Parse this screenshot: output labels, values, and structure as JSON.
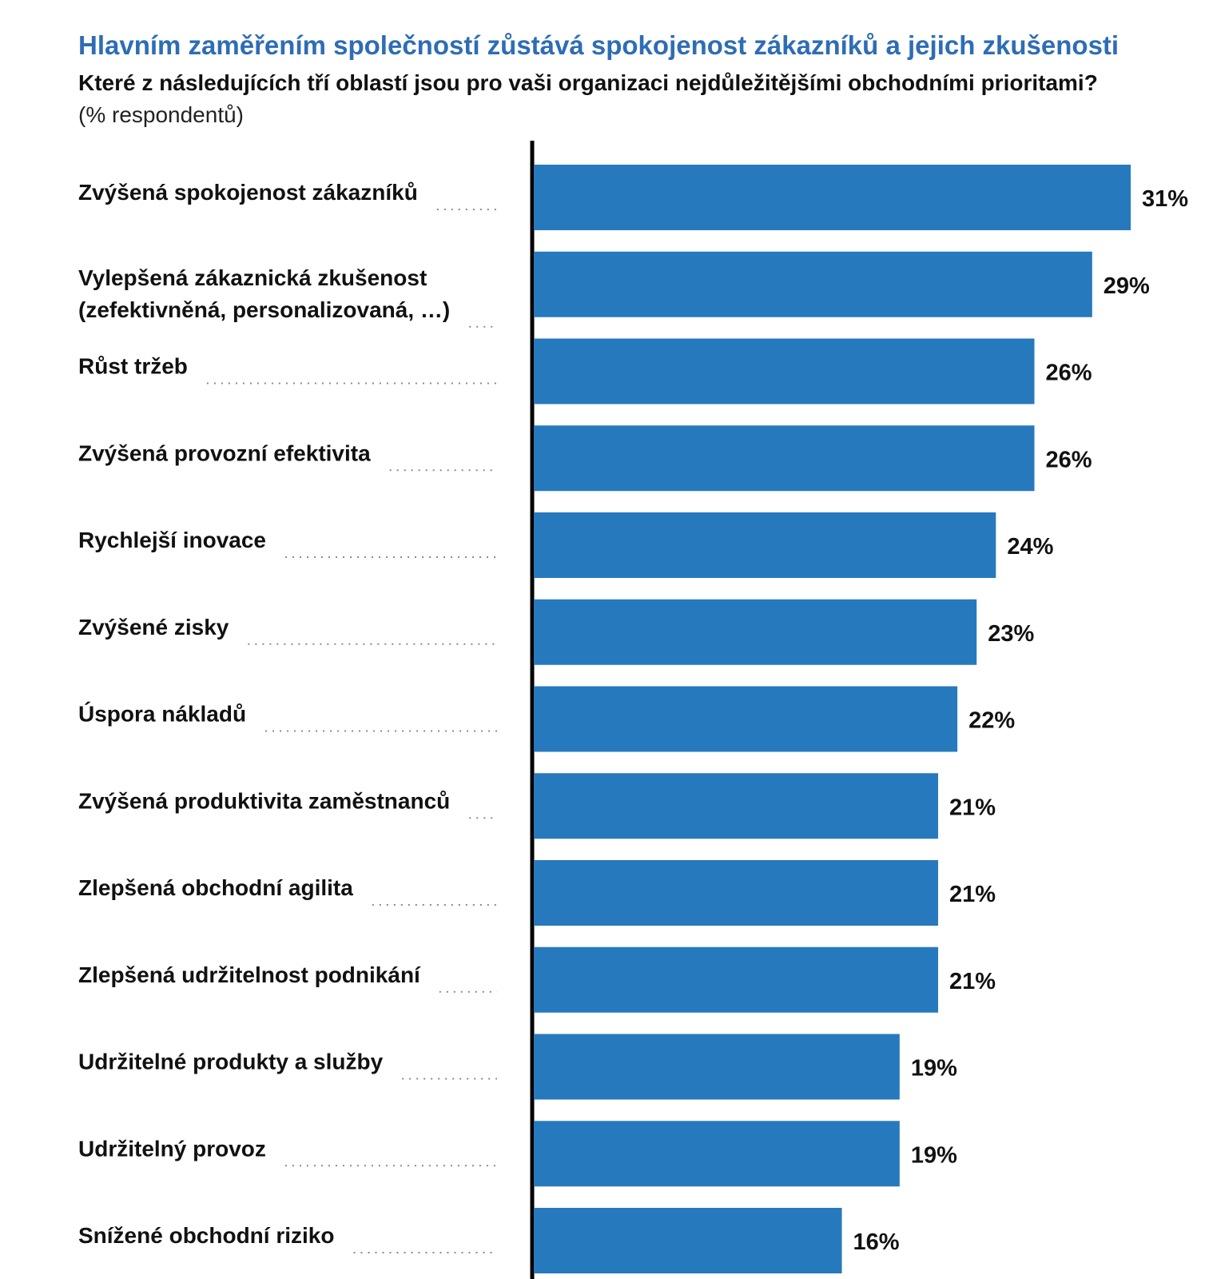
{
  "title": "Hlavním zaměřením společností zůstává spokojenost zákazníků a jejich zkušenosti",
  "subtitle": "Které z následujících tří oblastí jsou pro vaši organizaci nejdůležitějšími obchodními prioritami?",
  "note": "(% respondentů)",
  "colors": {
    "bar": "#2779bd",
    "axis": "#000000",
    "title": "#2e6db5"
  },
  "chart_data": {
    "type": "bar",
    "orientation": "horizontal",
    "title": "Hlavním zaměřením společností zůstává spokojenost zákazníků a jejich zkušenosti",
    "subtitle": "Které z následujících tří oblastí jsou pro vaši organizaci nejdůležitějšími obchodními prioritami?",
    "unit": "(% respondentů)",
    "categories": [
      [
        "Zvýšená spokojenost zákazníků"
      ],
      [
        "Vylepšená zákaznická zkušenost",
        "(zefektivněná, personalizovaná, …)"
      ],
      [
        "Růst tržeb"
      ],
      [
        "Zvýšená provozní efektivita"
      ],
      [
        "Rychlejší inovace"
      ],
      [
        "Zvýšené zisky"
      ],
      [
        "Úspora nákladů"
      ],
      [
        "Zvýšená produktivita zaměstnanců"
      ],
      [
        "Zlepšená obchodní agilita"
      ],
      [
        "Zlepšená udržitelnost podnikání"
      ],
      [
        "Udržitelné produkty a služby"
      ],
      [
        "Udržitelný provoz"
      ],
      [
        "Snížené obchodní riziko"
      ]
    ],
    "values": [
      31,
      29,
      26,
      26,
      24,
      23,
      22,
      21,
      21,
      21,
      19,
      19,
      16
    ],
    "labels": [
      "31%",
      "29%",
      "26%",
      "26%",
      "24%",
      "23%",
      "22%",
      "21%",
      "21%",
      "21%",
      "19%",
      "19%",
      "16%"
    ],
    "xlim": [
      0,
      31
    ],
    "grid": false,
    "legend": "none"
  }
}
